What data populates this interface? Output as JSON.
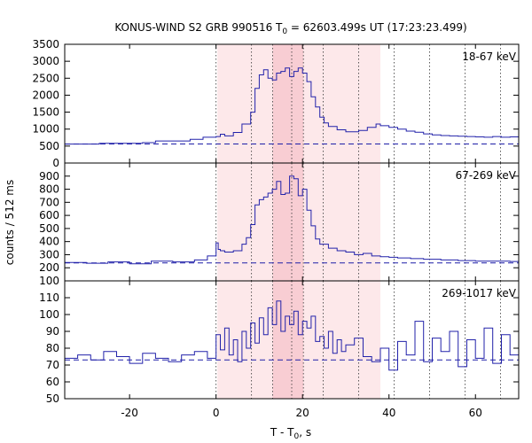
{
  "chart_data": {
    "type": "line",
    "title": {
      "main": "KONUS-WIND S2 GRB 990516 T",
      "sub": "0",
      "rest": " = 62603.499s UT (17:23:23.499)"
    },
    "xlabel": {
      "main": "T - T",
      "sub": "0",
      "rest": ", s"
    },
    "ylabel": "counts / 512 ms",
    "xlim": [
      -35,
      70
    ],
    "x_ticks": [
      -20,
      0,
      20,
      40,
      60
    ],
    "x_tick_labels": [
      "-20",
      "0",
      "20",
      "40",
      "60"
    ],
    "shaded_intervals": [
      {
        "from": 0.3,
        "to": 38.0,
        "color": "#fde8ea"
      },
      {
        "from": 13.1,
        "to": 20.2,
        "color": "#f8cdd3"
      }
    ],
    "dotted_vlines": [
      0,
      8.2,
      13.1,
      17.5,
      20.2,
      24.8,
      33.0,
      41.2,
      49.4,
      57.6,
      65.8
    ],
    "colors": {
      "data": "#2222aa",
      "background": "#1e1ea8"
    },
    "panels": [
      {
        "band": "18-67 keV",
        "ylim": [
          0,
          3500
        ],
        "y_ticks": [
          0,
          500,
          1000,
          1500,
          2000,
          2500,
          3000,
          3500
        ],
        "y_tick_labels": [
          "0",
          "500",
          "1000",
          "1500",
          "2000",
          "2500",
          "3000",
          "3500"
        ],
        "background_level": 560,
        "series": {
          "x": [
            -35,
            -27,
            -17,
            -14,
            -6,
            -3,
            0,
            1,
            2,
            4,
            6,
            8,
            9,
            10,
            11,
            12,
            13,
            14,
            15,
            16,
            17,
            18,
            19,
            20,
            21,
            22,
            23,
            24,
            25,
            26,
            28,
            30,
            33,
            35,
            37,
            38,
            40,
            42,
            44,
            46,
            48,
            50,
            52,
            54,
            56,
            58,
            60,
            62,
            64,
            66,
            68,
            70
          ],
          "y": [
            560,
            580,
            600,
            650,
            700,
            760,
            780,
            850,
            800,
            900,
            1150,
            1500,
            2200,
            2600,
            2750,
            2500,
            2450,
            2650,
            2700,
            2800,
            2550,
            2700,
            2800,
            2650,
            2400,
            1950,
            1650,
            1350,
            1180,
            1080,
            980,
            920,
            960,
            1050,
            1150,
            1100,
            1050,
            1000,
            940,
            910,
            860,
            830,
            810,
            800,
            790,
            780,
            770,
            760,
            780,
            760,
            770,
            750
          ]
        }
      },
      {
        "band": "67-269 keV",
        "ylim": [
          100,
          1000
        ],
        "y_ticks": [
          100,
          200,
          300,
          400,
          500,
          600,
          700,
          800,
          900
        ],
        "y_tick_labels": [
          "100",
          "200",
          "300",
          "400",
          "500",
          "600",
          "700",
          "800",
          "900"
        ],
        "background_level": 237,
        "series": {
          "x": [
            -35,
            -30,
            -25,
            -20,
            -15,
            -10,
            -5,
            -2,
            0,
            0.5,
            1,
            2,
            4,
            6,
            7,
            8,
            9,
            10,
            11,
            12,
            13,
            14,
            15,
            16,
            17,
            18,
            19,
            20,
            21,
            22,
            23,
            24,
            26,
            28,
            30,
            32,
            34,
            36,
            38,
            40,
            42,
            45,
            48,
            52,
            56,
            60,
            64,
            68,
            70
          ],
          "y": [
            240,
            235,
            245,
            230,
            250,
            245,
            260,
            290,
            390,
            340,
            330,
            320,
            330,
            380,
            430,
            530,
            680,
            720,
            740,
            770,
            800,
            860,
            760,
            770,
            900,
            880,
            750,
            800,
            640,
            520,
            420,
            380,
            350,
            330,
            320,
            300,
            310,
            290,
            285,
            280,
            275,
            270,
            265,
            260,
            255,
            250,
            250,
            248,
            245
          ]
        }
      },
      {
        "band": "269-1017 keV",
        "ylim": [
          50,
          120
        ],
        "y_ticks": [
          50,
          60,
          70,
          80,
          90,
          100,
          110
        ],
        "y_tick_labels": [
          "50",
          "60",
          "70",
          "80",
          "90",
          "100",
          "110"
        ],
        "background_level": 73,
        "series": {
          "x": [
            -35,
            -32,
            -29,
            -26,
            -23,
            -20,
            -17,
            -14,
            -11,
            -8,
            -5,
            -2,
            0,
            1,
            2,
            3,
            4,
            5,
            6,
            7,
            8,
            9,
            10,
            11,
            12,
            13,
            14,
            15,
            16,
            17,
            18,
            19,
            20,
            21,
            22,
            23,
            24,
            25,
            26,
            27,
            28,
            29,
            30,
            32,
            34,
            36,
            38,
            40,
            42,
            44,
            46,
            48,
            50,
            52,
            54,
            56,
            58,
            60,
            62,
            64,
            66,
            68,
            70
          ],
          "y": [
            74,
            76,
            73,
            78,
            75,
            71,
            77,
            74,
            72,
            76,
            78,
            74,
            88,
            79,
            92,
            76,
            85,
            72,
            90,
            80,
            95,
            83,
            98,
            88,
            104,
            94,
            108,
            90,
            99,
            94,
            102,
            88,
            96,
            92,
            99,
            84,
            87,
            80,
            90,
            77,
            85,
            78,
            82,
            86,
            75,
            72,
            80,
            67,
            84,
            76,
            96,
            72,
            86,
            78,
            90,
            69,
            85,
            74,
            92,
            71,
            88,
            76,
            80
          ]
        }
      }
    ]
  }
}
